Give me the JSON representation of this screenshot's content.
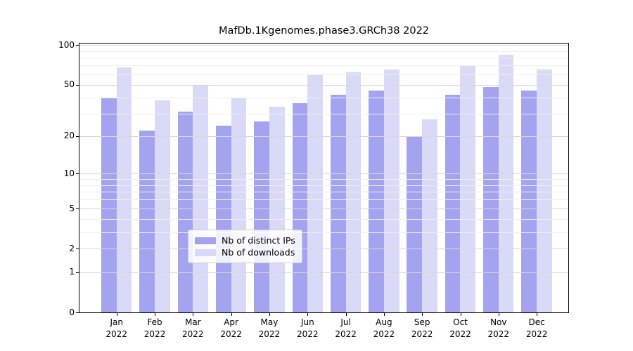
{
  "chart_data": {
    "type": "bar",
    "title": "MafDb.1Kgenomes.phase3.GRCh38 2022",
    "categories": [
      "Jan",
      "Feb",
      "Mar",
      "Apr",
      "May",
      "Jun",
      "Jul",
      "Aug",
      "Sep",
      "Oct",
      "Nov",
      "Dec"
    ],
    "year_label": "2022",
    "series": [
      {
        "name": "Nb of distinct IPs",
        "color": "#a3a3ef",
        "values": [
          40,
          22,
          31,
          24,
          26,
          36,
          42,
          45,
          20,
          42,
          48,
          45
        ]
      },
      {
        "name": "Nb of downloads",
        "color": "#d9d9f8",
        "values": [
          68,
          38,
          49,
          40,
          34,
          60,
          62,
          65,
          27,
          70,
          84,
          65
        ]
      }
    ],
    "yscale": "log1p",
    "ylim": [
      0,
      102
    ],
    "yticks": [
      100,
      50,
      20,
      10,
      5,
      2,
      1,
      0
    ],
    "minor_gridlines": [
      3,
      4,
      6,
      7,
      8,
      9,
      30,
      40,
      60,
      70,
      80,
      90
    ],
    "grid": "on",
    "legend_position": "lower center",
    "colors": {
      "major_grid": "#d8d8d8",
      "minor_grid": "#efefef",
      "axis": "#000000",
      "background": "#ffffff"
    }
  }
}
